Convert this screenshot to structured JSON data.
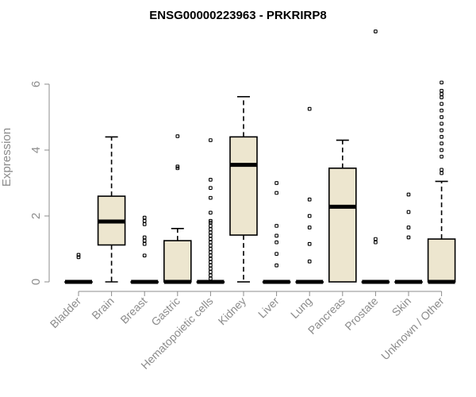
{
  "chart_data": {
    "type": "box",
    "title": "ENSG00000223963 - PRKRIRP8",
    "xlabel": "",
    "ylabel": "Expression",
    "ylim": [
      0,
      6.2
    ],
    "yticks": [
      "0",
      "2",
      "4",
      "6"
    ],
    "box_color": "#ede6cf",
    "categories": [
      "Bladder",
      "Brain",
      "Breast",
      "Gastric",
      "Hematopoietic cells",
      "Kidney",
      "Liver",
      "Lung",
      "Pancreas",
      "Prostate",
      "Skin",
      "Unknown / Other"
    ],
    "series": [
      {
        "q1": 0,
        "median": 0,
        "q3": 0,
        "whisker_low": 0,
        "whisker_high": 0,
        "outliers": [
          0.75,
          0.82
        ]
      },
      {
        "q1": 1.12,
        "median": 1.83,
        "q3": 2.6,
        "whisker_low": 0,
        "whisker_high": 4.4,
        "outliers": []
      },
      {
        "q1": 0,
        "median": 0,
        "q3": 0,
        "whisker_low": 0,
        "whisker_high": 0,
        "outliers": [
          0.8,
          1.15,
          1.25,
          1.35,
          1.75,
          1.85,
          1.95
        ]
      },
      {
        "q1": 0,
        "median": 0,
        "q3": 1.25,
        "whisker_low": 0,
        "whisker_high": 1.62,
        "outliers": [
          3.45,
          3.5,
          4.42
        ]
      },
      {
        "q1": 0,
        "median": 0,
        "q3": 0,
        "whisker_low": 0,
        "whisker_high": 0,
        "outliers": [
          0.1,
          0.2,
          0.3,
          0.4,
          0.5,
          0.6,
          0.7,
          0.8,
          0.9,
          1.0,
          1.1,
          1.2,
          1.3,
          1.4,
          1.5,
          1.6,
          1.7,
          1.8,
          1.85,
          2.1,
          2.55,
          2.85,
          3.1,
          4.3
        ]
      },
      {
        "q1": 1.42,
        "median": 3.55,
        "q3": 4.4,
        "whisker_low": 0,
        "whisker_high": 5.62,
        "outliers": []
      },
      {
        "q1": 0,
        "median": 0,
        "q3": 0,
        "whisker_low": 0,
        "whisker_high": 0,
        "outliers": [
          0.5,
          0.85,
          1.2,
          1.4,
          1.7,
          2.7,
          3.0
        ]
      },
      {
        "q1": 0,
        "median": 0,
        "q3": 0,
        "whisker_low": 0,
        "whisker_high": 0,
        "outliers": [
          0.62,
          1.15,
          1.65,
          2.0,
          2.5,
          5.25
        ]
      },
      {
        "q1": 0,
        "median": 2.28,
        "q3": 3.45,
        "whisker_low": 0,
        "whisker_high": 4.3,
        "outliers": []
      },
      {
        "q1": 0,
        "median": 0,
        "q3": 0,
        "whisker_low": 0,
        "whisker_high": 0,
        "outliers": [
          1.2,
          1.3,
          7.6
        ]
      },
      {
        "q1": 0,
        "median": 0,
        "q3": 0,
        "whisker_low": 0,
        "whisker_high": 0,
        "outliers": [
          1.35,
          1.65,
          2.12,
          2.65
        ]
      },
      {
        "q1": 0,
        "median": 0,
        "q3": 1.3,
        "whisker_low": 0,
        "whisker_high": 3.05,
        "outliers": [
          3.3,
          3.4,
          3.8,
          4.0,
          4.2,
          4.4,
          4.6,
          4.8,
          5.0,
          5.2,
          5.4,
          5.6,
          5.7,
          5.8,
          6.05
        ]
      }
    ]
  }
}
